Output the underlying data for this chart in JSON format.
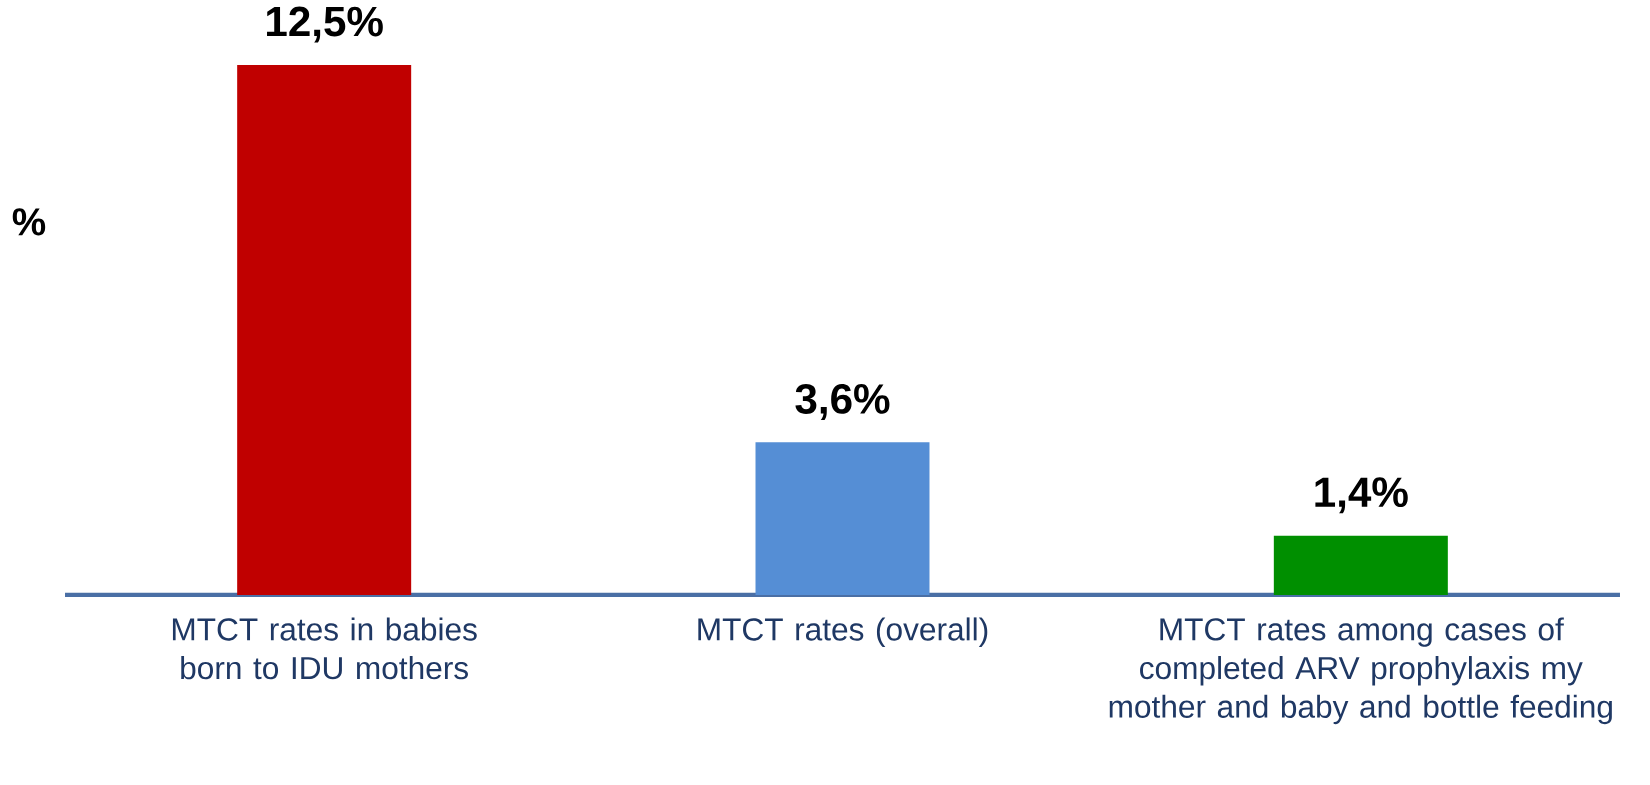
{
  "chart_data": {
    "type": "bar",
    "ylabel": "%",
    "categories": [
      "MTCT rates in babies born to IDU mothers",
      "MTCT rates (overall)",
      "MTCT rates among cases of completed ARV prophylaxis my mother and baby and bottle feeding"
    ],
    "values": [
      12.5,
      3.6,
      1.4
    ],
    "colors": [
      "#c00000",
      "#558ed5",
      "#008f00"
    ],
    "value_labels": [
      "12,5%",
      "3,6%",
      "1,4%"
    ]
  }
}
